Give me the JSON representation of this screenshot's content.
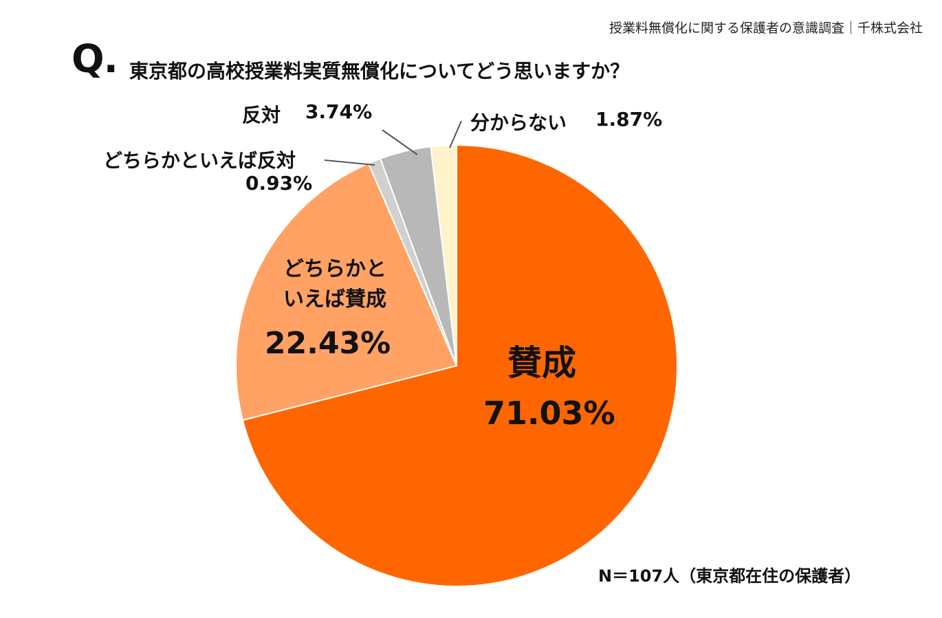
{
  "source_note": "授業料無償化に関する保護者の意識調査｜千株式会社",
  "question": {
    "mark": "Q.",
    "text": "東京都の高校授業料実質無償化についてどう思いますか？"
  },
  "chart_data": {
    "type": "pie",
    "slices": [
      {
        "label": "賛成",
        "value": 71.03,
        "value_text": "71.03%",
        "color": "#FF6600"
      },
      {
        "label": "どちらかといえば賛成",
        "value": 22.43,
        "value_text": "22.43%",
        "color": "#FFA264"
      },
      {
        "label": "どちらかといえば反対",
        "value": 0.93,
        "value_text": "0.93%",
        "color": "#D0D0D0"
      },
      {
        "label": "反対",
        "value": 3.74,
        "value_text": "3.74%",
        "color": "#B8B8B8"
      },
      {
        "label": "分からない",
        "value": 1.87,
        "value_text": "1.87%",
        "color": "#FFF3CC"
      }
    ]
  },
  "labels": {
    "sansei_name": "賛成",
    "sansei_value": "71.03%",
    "dochira_sansei_line1": "どちらかと",
    "dochira_sansei_line2": "いえば賛成",
    "dochira_sansei_value": "22.43%",
    "dochira_hantai_name": "どちらかといえば反対",
    "dochira_hantai_value": "0.93%",
    "hantai_name": "反対",
    "hantai_value": "3.74%",
    "wakaranai_name": "分からない",
    "wakaranai_value": "1.87%"
  },
  "sample_note": "N＝107人（東京都在住の保護者）"
}
